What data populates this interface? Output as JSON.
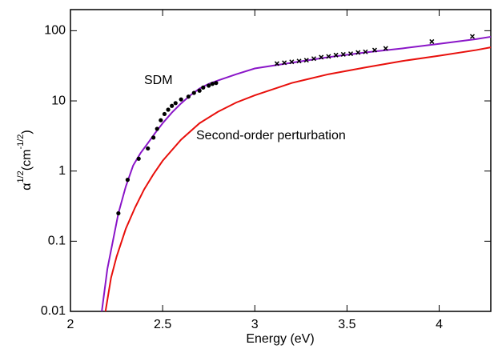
{
  "chart_data": {
    "type": "line",
    "x_label": "Energy (eV)",
    "y_label": {
      "symbol": "α",
      "symbol_sup": "1/2",
      "unit": "(cm",
      "unit_sup": "-1/2",
      "close": ")"
    },
    "log_y": true,
    "xlim": [
      2,
      4.28
    ],
    "ylim": [
      0.01,
      200
    ],
    "xticks": [
      2,
      2.5,
      3,
      3.5,
      4
    ],
    "yticks": [
      0.01,
      0.1,
      1,
      10,
      100
    ],
    "annotations": [
      {
        "text": "SDM",
        "color": "#8a16c8"
      },
      {
        "text": "Second-order perturbation",
        "color": "#e8100c"
      }
    ],
    "series": [
      {
        "type": "line",
        "color": "#8a16c8",
        "x": [
          2.17,
          2.2,
          2.23,
          2.26,
          2.3,
          2.34,
          2.38,
          2.42,
          2.46,
          2.5,
          2.55,
          2.6,
          2.65,
          2.7,
          2.75,
          2.8,
          2.9,
          3.0,
          3.2,
          3.4,
          3.6,
          3.8,
          4.0,
          4.2,
          4.28
        ],
        "values": [
          0.01,
          0.04,
          0.1,
          0.25,
          0.6,
          1.2,
          1.8,
          2.5,
          3.5,
          4.8,
          6.8,
          9.2,
          12,
          15,
          17.5,
          19.5,
          24,
          29,
          35,
          42,
          49,
          56,
          65,
          76,
          82
        ]
      },
      {
        "type": "line",
        "color": "#e8100c",
        "x": [
          2.19,
          2.22,
          2.25,
          2.3,
          2.35,
          2.4,
          2.45,
          2.5,
          2.6,
          2.7,
          2.8,
          2.9,
          3.0,
          3.2,
          3.4,
          3.6,
          3.8,
          4.0,
          4.2,
          4.28
        ],
        "values": [
          0.01,
          0.03,
          0.06,
          0.15,
          0.3,
          0.55,
          0.9,
          1.4,
          2.8,
          4.8,
          7,
          9.5,
          12,
          18,
          24,
          30,
          37,
          44,
          53,
          58
        ]
      },
      {
        "type": "scatter",
        "marker": "dot",
        "color": "#000000",
        "x": [
          2.26,
          2.31,
          2.37,
          2.42,
          2.45,
          2.47,
          2.49,
          2.51,
          2.53,
          2.55,
          2.57,
          2.6,
          2.64,
          2.67,
          2.7,
          2.72,
          2.75,
          2.77,
          2.79
        ],
        "values": [
          0.25,
          0.75,
          1.5,
          2.1,
          3.0,
          4.0,
          5.3,
          6.5,
          7.5,
          8.5,
          9.3,
          10.5,
          11.5,
          13,
          14,
          15.5,
          16.5,
          17.5,
          18
        ]
      },
      {
        "type": "scatter",
        "marker": "cross",
        "color": "#000000",
        "x": [
          3.12,
          3.16,
          3.2,
          3.24,
          3.28,
          3.32,
          3.36,
          3.4,
          3.44,
          3.48,
          3.52,
          3.56,
          3.6,
          3.65,
          3.71,
          3.96,
          4.18
        ],
        "values": [
          34,
          35,
          36,
          37,
          38,
          40,
          42,
          43,
          45,
          46,
          47,
          49,
          50,
          53,
          56,
          70,
          83
        ]
      }
    ]
  }
}
